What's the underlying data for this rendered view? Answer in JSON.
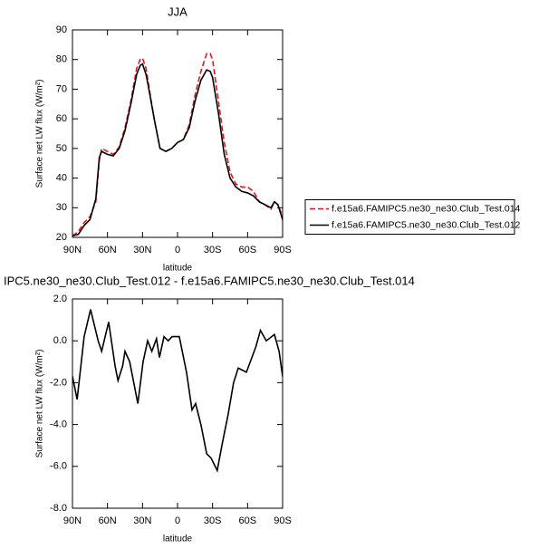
{
  "chart_data": [
    {
      "type": "line",
      "title": "JJA",
      "xlabel": "latitude",
      "ylabel": "Surface net LW flux (W/m²)",
      "x": [
        90,
        85,
        80,
        75,
        70,
        67,
        65,
        60,
        55,
        50,
        45,
        40,
        35,
        32,
        30,
        27,
        25,
        20,
        15,
        10,
        5,
        0,
        -5,
        -10,
        -15,
        -20,
        -25,
        -28,
        -30,
        -35,
        -40,
        -45,
        -50,
        -55,
        -60,
        -65,
        -70,
        -75,
        -80,
        -83,
        -86,
        -90
      ],
      "series": [
        {
          "name": "f.e15a6.FAMIPC5.ne30_ne30.Club_Test.014",
          "color": "#e8141a",
          "dash": true,
          "values": [
            20.5,
            22,
            25,
            27,
            32,
            46,
            50,
            49,
            48,
            50.5,
            57,
            66,
            77,
            80,
            80.5,
            77,
            72,
            60,
            50,
            49,
            50,
            52,
            53,
            58,
            68,
            76,
            82,
            82,
            80,
            66,
            52,
            42,
            38,
            37,
            37,
            35.5,
            32,
            31,
            29.5,
            32,
            31,
            27
          ]
        },
        {
          "name": "f.e15a6.FAMIPC5.ne30_ne30.Club_Test.012",
          "color": "#000000",
          "dash": false,
          "values": [
            20.5,
            21,
            24,
            26,
            33,
            47,
            49,
            48,
            47.5,
            50,
            56,
            65,
            75,
            78,
            78.5,
            75,
            71,
            60,
            50,
            49,
            50,
            52,
            53,
            57,
            66,
            73,
            76.5,
            76,
            74,
            62,
            48,
            40,
            37,
            35.5,
            35,
            34,
            32,
            31,
            30,
            32,
            31,
            26
          ]
        }
      ],
      "xlim": [
        90,
        -90
      ],
      "xticks": [
        {
          "value": 90,
          "label": "90N"
        },
        {
          "value": 60,
          "label": "60N"
        },
        {
          "value": 30,
          "label": "30N"
        },
        0,
        {
          "value": -30,
          "label": "30S"
        },
        {
          "value": -60,
          "label": "60S"
        },
        {
          "value": -90,
          "label": "90S"
        }
      ],
      "ylim": [
        20,
        90
      ],
      "yticks": [
        20,
        30,
        40,
        50,
        60,
        70,
        80,
        90
      ],
      "legend": "right"
    },
    {
      "type": "line",
      "title": "IPC5.ne30_ne30.Club_Test.012 - f.e15a6.FAMIPC5.ne30_ne30.Club_Test.014",
      "xlabel": "latitude",
      "ylabel": "Surface net LW flux (W/m²)",
      "x": [
        90,
        86,
        80,
        74.5,
        68,
        65,
        59,
        53.5,
        51,
        47,
        45,
        41,
        34,
        29.5,
        25.6,
        22,
        18,
        15.5,
        11.6,
        8,
        4.7,
        -1.5,
        -7.7,
        -12.4,
        -15.5,
        -20,
        -25,
        -28.7,
        -34,
        -38,
        -43.4,
        -48,
        -52,
        -59,
        -63,
        -67,
        -71,
        -76,
        -83,
        -87,
        -90
      ],
      "series": [
        {
          "color": "#000000",
          "dash": false,
          "values": [
            -1.7,
            -2.8,
            0.2,
            1.5,
            0,
            -0.5,
            0.9,
            -1.2,
            -1.9,
            -1.2,
            -0.5,
            -1.0,
            -3.0,
            -1.0,
            0.0,
            -0.5,
            0.1,
            -0.8,
            0.2,
            0.0,
            0.2,
            0.2,
            -1.5,
            -3.3,
            -3.0,
            -4.0,
            -5.4,
            -5.6,
            -6.2,
            -5.0,
            -3.5,
            -2.0,
            -1.3,
            -1.5,
            -0.9,
            -0.3,
            0.5,
            0.0,
            0.3,
            -0.5,
            -1.7
          ]
        }
      ],
      "xlim": [
        90,
        -90
      ],
      "xticks": [
        {
          "value": 90,
          "label": "90N"
        },
        {
          "value": 60,
          "label": "60N"
        },
        {
          "value": 30,
          "label": "30N"
        },
        0,
        {
          "value": -30,
          "label": "30S"
        },
        {
          "value": -60,
          "label": "60S"
        },
        {
          "value": -90,
          "label": "90S"
        }
      ],
      "ylim": [
        -8,
        2
      ],
      "yticks": [
        {
          "value": -8,
          "label": "-8.0"
        },
        {
          "value": -6,
          "label": "-6.0"
        },
        {
          "value": -4,
          "label": "-4.0"
        },
        {
          "value": -2,
          "label": "-2.0"
        },
        {
          "value": 0,
          "label": "0.0"
        },
        {
          "value": 2,
          "label": "2.0"
        }
      ]
    }
  ]
}
